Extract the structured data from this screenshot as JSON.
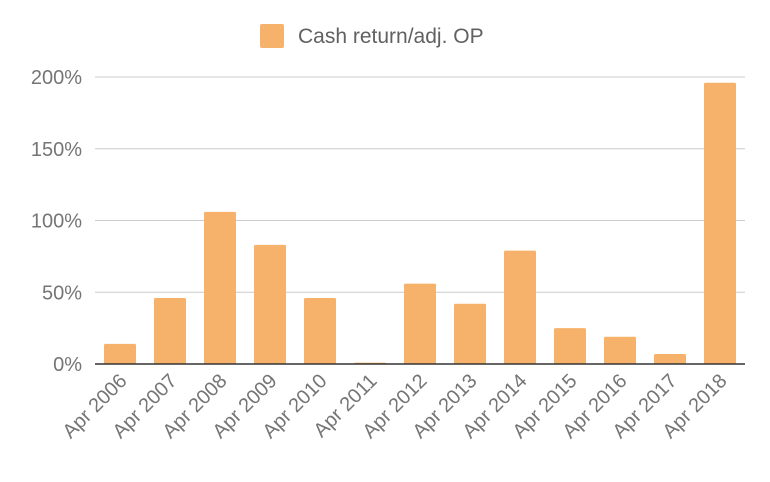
{
  "chart_data": {
    "type": "bar",
    "title": "",
    "xlabel": "",
    "ylabel": "",
    "legend": {
      "position": "top",
      "label": "Cash return/adj. OP"
    },
    "categories": [
      "Apr 2006",
      "Apr 2007",
      "Apr 2008",
      "Apr 2009",
      "Apr 2010",
      "Apr 2011",
      "Apr 2012",
      "Apr 2013",
      "Apr 2014",
      "Apr 2015",
      "Apr 2016",
      "Apr 2017",
      "Apr 2018"
    ],
    "series": [
      {
        "name": "Cash return/adj. OP",
        "color": "#F6B26B",
        "values": [
          14,
          46,
          106,
          83,
          46,
          1,
          56,
          42,
          79,
          25,
          19,
          7,
          196
        ]
      }
    ],
    "ylim": [
      0,
      200
    ],
    "yticks": [
      0,
      50,
      100,
      150,
      200
    ],
    "ytick_labels": [
      "0%",
      "50%",
      "100%",
      "150%",
      "200%"
    ],
    "grid": true
  }
}
